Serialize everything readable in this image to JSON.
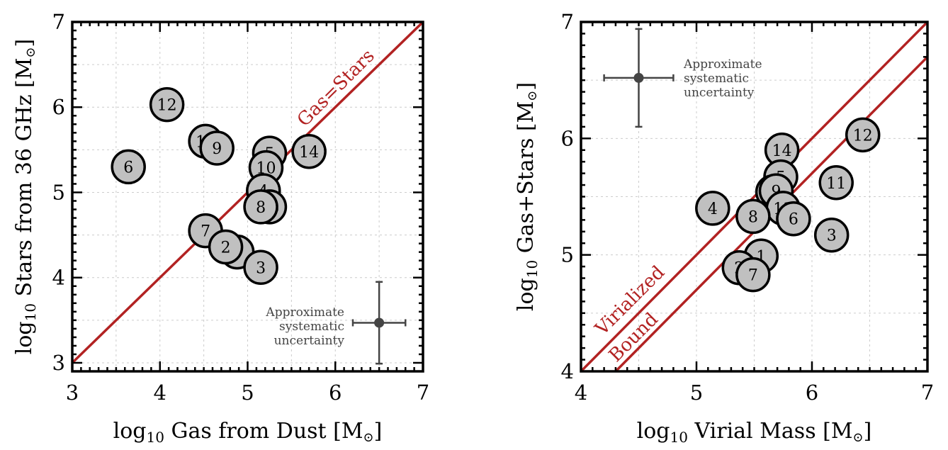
{
  "colors": {
    "line": "#b22222",
    "marker_fill": "#c0c0c0",
    "marker_edge": "#000000",
    "error_bar": "#444444",
    "grid": "#cccccc"
  },
  "chart_data": [
    {
      "type": "scatter",
      "xlabel": {
        "prefix": "log",
        "sub": "10",
        "main": " Gas from Dust ",
        "unit": "[M",
        "sun": "⊙",
        "close": "]"
      },
      "ylabel": {
        "prefix": "log",
        "sub": "10",
        "main": " Stars from 36 GHz ",
        "unit": "[M",
        "sun": "⊙",
        "close": "]"
      },
      "xlim": [
        3,
        7
      ],
      "ylim": [
        2.9,
        7
      ],
      "xticks": [
        3,
        4,
        5,
        6,
        7
      ],
      "yticks": [
        3,
        4,
        5,
        6,
        7
      ],
      "grid": true,
      "points": [
        {
          "label": "12",
          "x": 4.08,
          "y": 6.03
        },
        {
          "label": "11",
          "x": 4.52,
          "y": 5.6
        },
        {
          "label": "9",
          "x": 4.65,
          "y": 5.52
        },
        {
          "label": "6",
          "x": 3.64,
          "y": 5.3
        },
        {
          "label": "14",
          "x": 5.7,
          "y": 5.48
        },
        {
          "label": "5",
          "x": 5.25,
          "y": 5.46
        },
        {
          "label": "10",
          "x": 5.21,
          "y": 5.29
        },
        {
          "label": "4",
          "x": 5.18,
          "y": 5.02
        },
        {
          "label": "13",
          "x": 5.25,
          "y": 4.83
        },
        {
          "label": "8",
          "x": 5.15,
          "y": 4.83
        },
        {
          "label": "7",
          "x": 4.52,
          "y": 4.55
        },
        {
          "label": "1",
          "x": 4.88,
          "y": 4.3
        },
        {
          "label": "2",
          "x": 4.75,
          "y": 4.36
        },
        {
          "label": "3",
          "x": 5.15,
          "y": 4.12
        }
      ],
      "lines": [
        {
          "name": "Gas=Stars",
          "x": [
            3,
            7
          ],
          "y": [
            3,
            7
          ]
        }
      ],
      "error_bar": {
        "x": 6.5,
        "y": 3.47,
        "xerr": 0.3,
        "yerr": 0.48,
        "text": [
          "Approximate",
          "systematic",
          "uncertainty"
        ]
      }
    },
    {
      "type": "scatter",
      "xlabel": {
        "prefix": "log",
        "sub": "10",
        "main": " Virial Mass ",
        "unit": "[M",
        "sun": "⊙",
        "close": "]"
      },
      "ylabel": {
        "prefix": "log",
        "sub": "10",
        "main": " Gas+Stars ",
        "unit": "[M",
        "sun": "⊙",
        "close": "]"
      },
      "xlim": [
        4,
        7
      ],
      "ylim": [
        4,
        7
      ],
      "xticks": [
        4,
        5,
        6,
        7
      ],
      "yticks": [
        4,
        5,
        6,
        7
      ],
      "grid": true,
      "points": [
        {
          "label": "14",
          "x": 5.74,
          "y": 5.9
        },
        {
          "label": "12",
          "x": 6.44,
          "y": 6.03
        },
        {
          "label": "5",
          "x": 5.73,
          "y": 5.67
        },
        {
          "label": "11",
          "x": 6.21,
          "y": 5.62
        },
        {
          "label": "10",
          "x": 5.66,
          "y": 5.54
        },
        {
          "label": "9",
          "x": 5.69,
          "y": 5.55
        },
        {
          "label": "4",
          "x": 5.14,
          "y": 5.4
        },
        {
          "label": "13",
          "x": 5.75,
          "y": 5.4
        },
        {
          "label": "8",
          "x": 5.49,
          "y": 5.33
        },
        {
          "label": "6",
          "x": 5.84,
          "y": 5.31
        },
        {
          "label": "3",
          "x": 6.17,
          "y": 5.17
        },
        {
          "label": "1",
          "x": 5.56,
          "y": 4.99
        },
        {
          "label": "2",
          "x": 5.37,
          "y": 4.89
        },
        {
          "label": "7",
          "x": 5.49,
          "y": 4.83
        }
      ],
      "lines": [
        {
          "name": "Virialized",
          "x": [
            4,
            7
          ],
          "y": [
            4,
            7
          ]
        },
        {
          "name": "Bound",
          "x": [
            4.3,
            7
          ],
          "y": [
            4,
            6.7
          ]
        }
      ],
      "error_bar": {
        "x": 4.5,
        "y": 6.52,
        "xerr": 0.3,
        "yerr": 0.42,
        "text": [
          "Approximate",
          "systematic",
          "uncertainty"
        ]
      }
    }
  ]
}
